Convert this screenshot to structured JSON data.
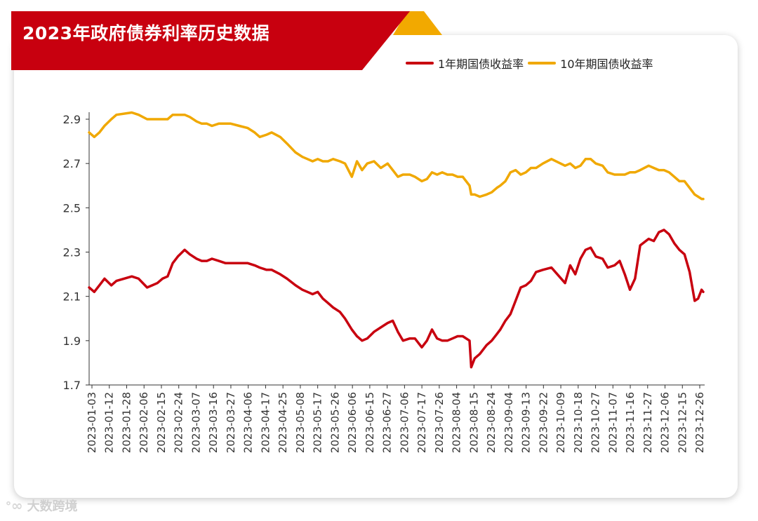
{
  "header": {
    "title": "2023年政府债券利率历史数据"
  },
  "watermark": {
    "logo_icon": "weibo-logo-icon",
    "text": "大数跨境"
  },
  "colors": {
    "banner": "#c8000f",
    "banner_accent": "#f2a900",
    "series_1y": "#c8000f",
    "series_10y": "#f0a800"
  },
  "chart_data": {
    "type": "line",
    "title": "2023年政府债券利率历史数据",
    "xlabel": "",
    "ylabel": "",
    "ylim": [
      1.7,
      3.0
    ],
    "y_ticks": [
      "1.7",
      "1.9",
      "2.1",
      "2.3",
      "2.5",
      "2.7",
      "2.9"
    ],
    "x_tick_labels": [
      "2023-01-03",
      "2023-01-12",
      "2023-01-28",
      "2023-02-06",
      "2023-02-15",
      "2023-02-24",
      "2023-03-07",
      "2023-03-16",
      "2023-03-27",
      "2023-04-06",
      "2023-04-17",
      "2023-04-25",
      "2023-05-08",
      "2023-05-17",
      "2023-05-26",
      "2023-06-06",
      "2023-06-15",
      "2023-06-27",
      "2023-07-06",
      "2023-07-17",
      "2023-07-26",
      "2023-08-04",
      "2023-08-15",
      "2023-08-24",
      "2023-09-04",
      "2023-09-13",
      "2023-09-22",
      "2023-10-09",
      "2023-10-18",
      "2023-10-27",
      "2023-11-07",
      "2023-11-16",
      "2023-11-27",
      "2023-12-06",
      "2023-12-15",
      "2023-12-26"
    ],
    "grid": false,
    "legend_position": "top-right",
    "series": [
      {
        "name": "1年期国债收益率",
        "color": "#c8000f",
        "x": [
          "2023-01-03",
          "2023-01-06",
          "2023-01-09",
          "2023-01-12",
          "2023-01-16",
          "2023-01-19",
          "2023-01-28",
          "2023-02-01",
          "2023-02-06",
          "2023-02-09",
          "2023-02-12",
          "2023-02-15",
          "2023-02-18",
          "2023-02-21",
          "2023-02-24",
          "2023-02-28",
          "2023-03-03",
          "2023-03-07",
          "2023-03-10",
          "2023-03-13",
          "2023-03-16",
          "2023-03-20",
          "2023-03-24",
          "2023-03-27",
          "2023-04-01",
          "2023-04-06",
          "2023-04-10",
          "2023-04-13",
          "2023-04-17",
          "2023-04-20",
          "2023-04-25",
          "2023-04-29",
          "2023-05-04",
          "2023-05-08",
          "2023-05-11",
          "2023-05-14",
          "2023-05-17",
          "2023-05-20",
          "2023-05-23",
          "2023-05-26",
          "2023-05-30",
          "2023-06-02",
          "2023-06-06",
          "2023-06-09",
          "2023-06-12",
          "2023-06-15",
          "2023-06-19",
          "2023-06-23",
          "2023-06-27",
          "2023-06-30",
          "2023-07-03",
          "2023-07-06",
          "2023-07-10",
          "2023-07-13",
          "2023-07-17",
          "2023-07-20",
          "2023-07-23",
          "2023-07-26",
          "2023-07-29",
          "2023-08-01",
          "2023-08-04",
          "2023-08-07",
          "2023-08-10",
          "2023-08-14",
          "2023-08-15",
          "2023-08-17",
          "2023-08-20",
          "2023-08-24",
          "2023-08-27",
          "2023-08-30",
          "2023-09-01",
          "2023-09-04",
          "2023-09-07",
          "2023-09-10",
          "2023-09-13",
          "2023-09-16",
          "2023-09-19",
          "2023-09-22",
          "2023-09-26",
          "2023-10-01",
          "2023-10-09",
          "2023-10-12",
          "2023-10-15",
          "2023-10-18",
          "2023-10-21",
          "2023-10-24",
          "2023-10-27",
          "2023-10-31",
          "2023-11-03",
          "2023-11-07",
          "2023-11-10",
          "2023-11-13",
          "2023-11-16",
          "2023-11-19",
          "2023-11-22",
          "2023-11-27",
          "2023-11-30",
          "2023-12-03",
          "2023-12-06",
          "2023-12-09",
          "2023-12-12",
          "2023-12-15",
          "2023-12-18",
          "2023-12-21",
          "2023-12-24",
          "2023-12-26",
          "2023-12-28",
          "2023-12-29"
        ],
        "values": [
          2.14,
          2.12,
          2.15,
          2.18,
          2.15,
          2.17,
          2.19,
          2.18,
          2.14,
          2.15,
          2.16,
          2.18,
          2.19,
          2.25,
          2.28,
          2.31,
          2.29,
          2.27,
          2.26,
          2.26,
          2.27,
          2.26,
          2.25,
          2.25,
          2.25,
          2.25,
          2.24,
          2.23,
          2.22,
          2.22,
          2.2,
          2.18,
          2.15,
          2.13,
          2.12,
          2.11,
          2.12,
          2.09,
          2.07,
          2.05,
          2.03,
          2.0,
          1.95,
          1.92,
          1.9,
          1.91,
          1.94,
          1.96,
          1.98,
          1.99,
          1.94,
          1.9,
          1.91,
          1.91,
          1.87,
          1.9,
          1.95,
          1.91,
          1.9,
          1.9,
          1.91,
          1.92,
          1.92,
          1.9,
          1.78,
          1.82,
          1.84,
          1.88,
          1.9,
          1.93,
          1.95,
          1.99,
          2.02,
          2.08,
          2.14,
          2.15,
          2.17,
          2.21,
          2.22,
          2.23,
          2.16,
          2.24,
          2.2,
          2.27,
          2.31,
          2.32,
          2.28,
          2.27,
          2.23,
          2.24,
          2.26,
          2.2,
          2.13,
          2.18,
          2.33,
          2.36,
          2.35,
          2.39,
          2.4,
          2.38,
          2.34,
          2.31,
          2.29,
          2.21,
          2.08,
          2.09,
          2.13,
          2.12
        ]
      },
      {
        "name": "10年期国债收益率",
        "color": "#f0a800",
        "x": [
          "2023-01-03",
          "2023-01-06",
          "2023-01-09",
          "2023-01-12",
          "2023-01-16",
          "2023-01-19",
          "2023-01-28",
          "2023-02-01",
          "2023-02-06",
          "2023-02-09",
          "2023-02-12",
          "2023-02-15",
          "2023-02-18",
          "2023-02-21",
          "2023-02-24",
          "2023-02-28",
          "2023-03-03",
          "2023-03-07",
          "2023-03-10",
          "2023-03-13",
          "2023-03-16",
          "2023-03-20",
          "2023-03-24",
          "2023-03-27",
          "2023-04-01",
          "2023-04-06",
          "2023-04-10",
          "2023-04-13",
          "2023-04-17",
          "2023-04-20",
          "2023-04-25",
          "2023-04-29",
          "2023-05-04",
          "2023-05-08",
          "2023-05-11",
          "2023-05-14",
          "2023-05-17",
          "2023-05-20",
          "2023-05-23",
          "2023-05-26",
          "2023-05-30",
          "2023-06-02",
          "2023-06-06",
          "2023-06-09",
          "2023-06-12",
          "2023-06-15",
          "2023-06-19",
          "2023-06-23",
          "2023-06-27",
          "2023-06-30",
          "2023-07-03",
          "2023-07-06",
          "2023-07-10",
          "2023-07-13",
          "2023-07-17",
          "2023-07-20",
          "2023-07-23",
          "2023-07-26",
          "2023-07-29",
          "2023-08-01",
          "2023-08-04",
          "2023-08-07",
          "2023-08-10",
          "2023-08-14",
          "2023-08-15",
          "2023-08-17",
          "2023-08-20",
          "2023-08-24",
          "2023-08-27",
          "2023-08-30",
          "2023-09-01",
          "2023-09-04",
          "2023-09-07",
          "2023-09-10",
          "2023-09-13",
          "2023-09-16",
          "2023-09-19",
          "2023-09-22",
          "2023-09-26",
          "2023-10-01",
          "2023-10-09",
          "2023-10-12",
          "2023-10-15",
          "2023-10-18",
          "2023-10-21",
          "2023-10-24",
          "2023-10-27",
          "2023-10-31",
          "2023-11-03",
          "2023-11-07",
          "2023-11-10",
          "2023-11-13",
          "2023-11-16",
          "2023-11-19",
          "2023-11-22",
          "2023-11-27",
          "2023-11-30",
          "2023-12-03",
          "2023-12-06",
          "2023-12-09",
          "2023-12-12",
          "2023-12-15",
          "2023-12-18",
          "2023-12-21",
          "2023-12-24",
          "2023-12-26",
          "2023-12-28",
          "2023-12-29"
        ],
        "values": [
          2.84,
          2.82,
          2.84,
          2.87,
          2.9,
          2.92,
          2.93,
          2.92,
          2.9,
          2.9,
          2.9,
          2.9,
          2.9,
          2.92,
          2.92,
          2.92,
          2.91,
          2.89,
          2.88,
          2.88,
          2.87,
          2.88,
          2.88,
          2.88,
          2.87,
          2.86,
          2.84,
          2.82,
          2.83,
          2.84,
          2.82,
          2.79,
          2.75,
          2.73,
          2.72,
          2.71,
          2.72,
          2.71,
          2.71,
          2.72,
          2.71,
          2.7,
          2.64,
          2.71,
          2.67,
          2.7,
          2.71,
          2.68,
          2.7,
          2.67,
          2.64,
          2.65,
          2.65,
          2.64,
          2.62,
          2.63,
          2.66,
          2.65,
          2.66,
          2.65,
          2.65,
          2.64,
          2.64,
          2.6,
          2.56,
          2.56,
          2.55,
          2.56,
          2.57,
          2.59,
          2.6,
          2.62,
          2.66,
          2.67,
          2.65,
          2.66,
          2.68,
          2.68,
          2.7,
          2.72,
          2.69,
          2.7,
          2.68,
          2.69,
          2.72,
          2.72,
          2.7,
          2.69,
          2.66,
          2.65,
          2.65,
          2.65,
          2.66,
          2.66,
          2.67,
          2.69,
          2.68,
          2.67,
          2.67,
          2.66,
          2.64,
          2.62,
          2.62,
          2.59,
          2.56,
          2.55,
          2.54,
          2.54
        ]
      }
    ]
  }
}
